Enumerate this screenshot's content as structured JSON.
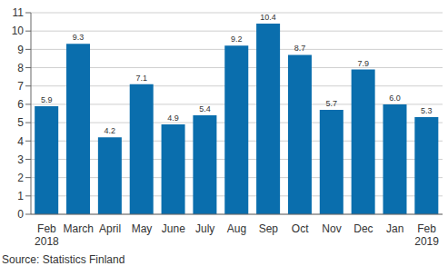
{
  "chart_data": {
    "type": "bar",
    "categories": [
      "Feb 2018",
      "March",
      "April",
      "May",
      "June",
      "July",
      "Aug",
      "Sep",
      "Oct",
      "Nov",
      "Dec",
      "Jan",
      "Feb 2019"
    ],
    "values": [
      5.9,
      9.3,
      4.2,
      7.1,
      4.9,
      5.4,
      9.2,
      10.4,
      8.7,
      5.7,
      7.9,
      6.0,
      5.3
    ],
    "value_labels": [
      "5.9",
      "9.3",
      "4.2",
      "7.1",
      "4.9",
      "5.4",
      "9.2",
      "10.4",
      "8.7",
      "5.7",
      "7.9",
      "6.0",
      "5.3"
    ],
    "color": "#0a6ead",
    "ylim": [
      0,
      11
    ],
    "yticks": [
      0,
      1,
      2,
      3,
      4,
      5,
      6,
      7,
      8,
      9,
      10,
      11
    ],
    "grid": true,
    "data_labels": true,
    "annotations": [
      "Source: Statistics Finland"
    ]
  }
}
